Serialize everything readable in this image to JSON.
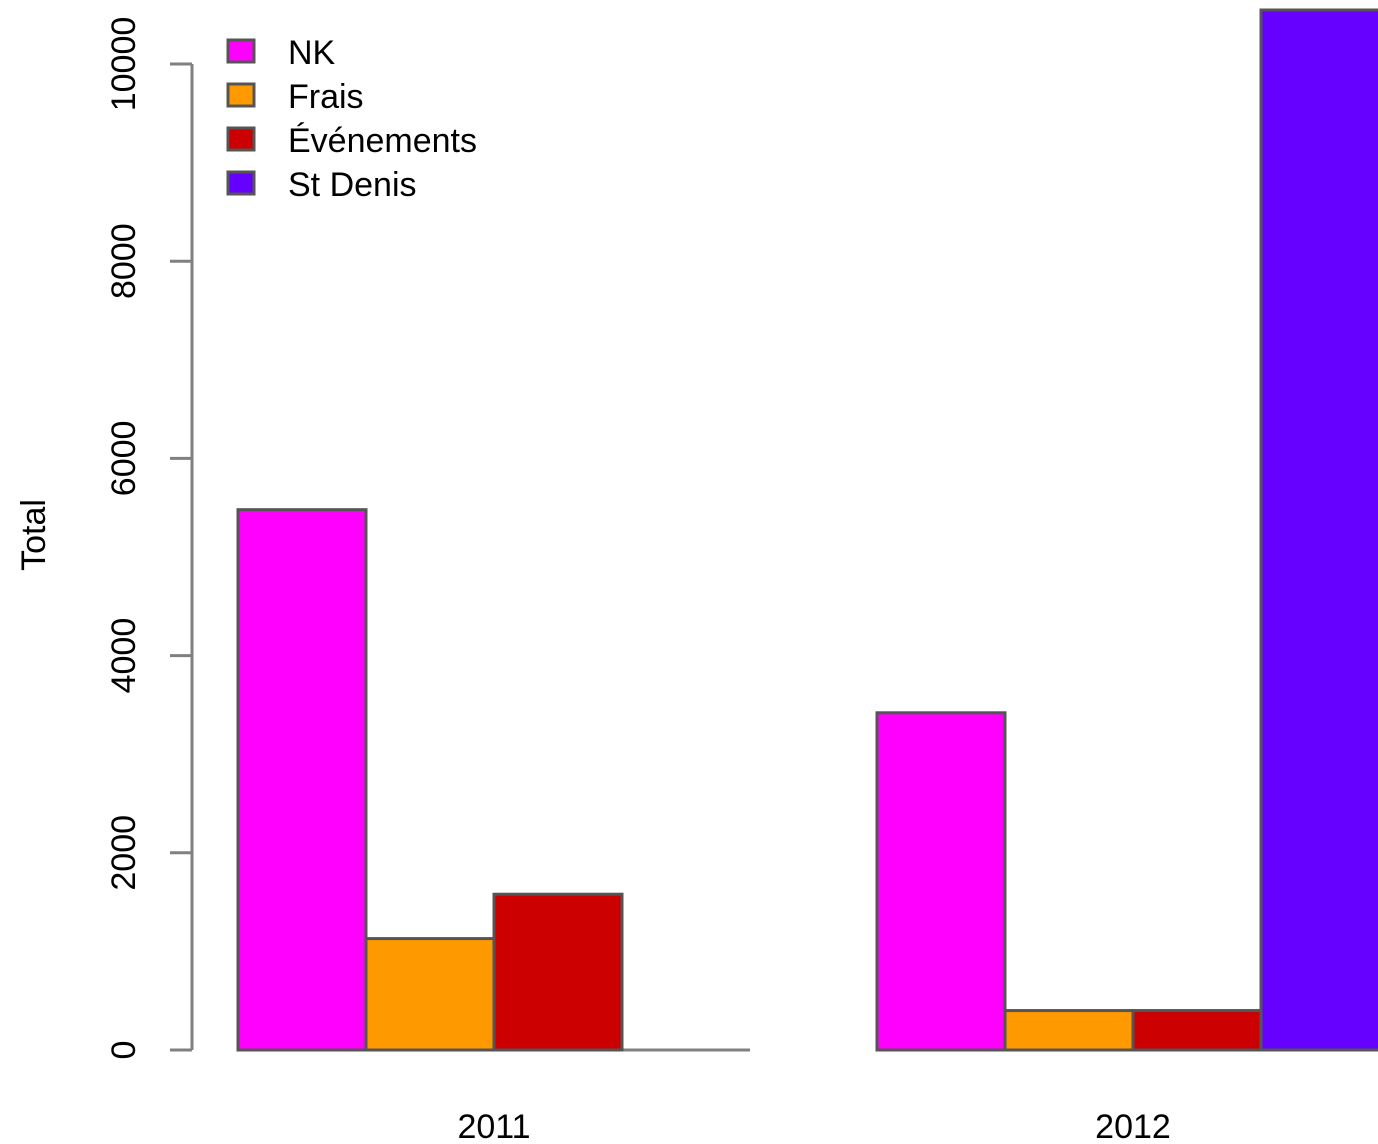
{
  "chart_data": {
    "type": "bar",
    "title": "",
    "xlabel": "",
    "ylabel": "Total",
    "categories": [
      "2011",
      "2012"
    ],
    "series": [
      {
        "name": "NK",
        "color": "#ff00ff",
        "values": [
          5480,
          3420
        ]
      },
      {
        "name": "Frais",
        "color": "#ff9900",
        "values": [
          1130,
          400
        ]
      },
      {
        "name": "Événements",
        "color": "#cc0000",
        "values": [
          1580,
          400
        ]
      },
      {
        "name": "St Denis",
        "color": "#6600ff",
        "values": [
          0,
          10700
        ]
      }
    ],
    "yticks": [
      0,
      2000,
      4000,
      6000,
      8000,
      10000
    ],
    "ylim": [
      0,
      10000
    ],
    "grid": false,
    "legend_position": "top-left"
  }
}
